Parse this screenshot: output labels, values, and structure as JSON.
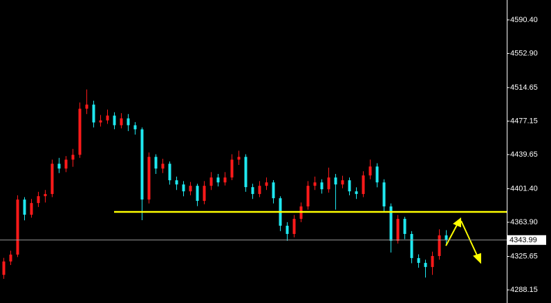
{
  "chart_data": {
    "type": "candlestick",
    "up_color": "#ff1a1a",
    "down_color": "#1fe8f0",
    "ylim": [
      4273.5,
      4612.7
    ],
    "yticks": [
      {
        "value": 4590.4,
        "label": "4590.40"
      },
      {
        "value": 4552.9,
        "label": "4552.90"
      },
      4514.65,
      4477.15,
      4439.65,
      {
        "value": 4401.4,
        "label": "4401.40"
      },
      {
        "value": 4363.9,
        "label": "4363.90"
      },
      4325.65,
      4288.15
    ],
    "current_price": 4343.99,
    "support_level": 4375.5,
    "open": [
      4305.0,
      4320.0,
      4327.7,
      4389.3,
      4372.3,
      4385.4,
      4393.1,
      4395.5,
      4429.4,
      4424.0,
      4434.0,
      4439.4,
      4491.0,
      4495.6,
      4475.6,
      4477.9,
      4483.3,
      4472.5,
      4480.2,
      4472.5,
      4467.9,
      4389.3,
      4437.1,
      4424.0,
      4429.4,
      4410.9,
      4406.2,
      4398.5,
      4404.7,
      4387.8,
      4404.7,
      4414.0,
      4408.5,
      4414.0,
      4434.0,
      4437.1,
      4403.2,
      4395.5,
      4404.7,
      4408.5,
      4390.8,
      4360.0,
      4350.8,
      4367.7,
      4381.6,
      4404.7,
      4408.5,
      4400.8,
      4414.0,
      4406.2,
      4410.9,
      4398.5,
      4395.5,
      4416.3,
      4426.3,
      4408.5,
      4381.6,
      4343.1,
      4367.7,
      4350.8,
      4323.8,
      4318.4,
      4313.8,
      4326.1,
      4349.2
    ],
    "high": [
      4324.0,
      4332.0,
      4394.0,
      4392.0,
      4390.0,
      4398.0,
      4400.0,
      4434.0,
      4436.0,
      4438.0,
      4446.0,
      4498.0,
      4512.5,
      4500.0,
      4484.0,
      4490.0,
      4487.0,
      4486.0,
      4485.0,
      4476.0,
      4470.0,
      4442.0,
      4440.0,
      4435.0,
      4432.0,
      4415.0,
      4410.0,
      4409.0,
      4407.0,
      4410.0,
      4420.0,
      4418.0,
      4420.0,
      4440.0,
      4444.0,
      4440.0,
      4407.0,
      4410.0,
      4414.0,
      4411.0,
      4393.0,
      4364.0,
      4372.0,
      4386.0,
      4410.0,
      4415.0,
      4412.0,
      4425.0,
      4418.0,
      4416.0,
      4414.0,
      4403.0,
      4421.0,
      4434.0,
      4430.0,
      4412.0,
      4385.0,
      4372.0,
      4370.0,
      4354.0,
      4328.0,
      4322.0,
      4331.0,
      4356.0,
      4355.0
    ],
    "low": [
      4300.5,
      4316.0,
      4325.0,
      4366.0,
      4369.0,
      4381.0,
      4386.0,
      4392.0,
      4419.0,
      4420.0,
      4426.0,
      4436.0,
      4485.0,
      4470.0,
      4471.0,
      4474.0,
      4468.0,
      4469.0,
      4466.0,
      4462.0,
      4366.2,
      4385.0,
      4418.0,
      4419.0,
      4406.0,
      4400.0,
      4393.0,
      4394.0,
      4382.0,
      4384.0,
      4400.0,
      4404.0,
      4405.0,
      4411.0,
      4428.0,
      4398.0,
      4390.0,
      4392.0,
      4400.0,
      4385.0,
      4354.0,
      4343.0,
      4347.0,
      4364.0,
      4378.0,
      4400.0,
      4396.0,
      4397.0,
      4378.0,
      4402.0,
      4394.0,
      4390.0,
      4392.0,
      4412.0,
      4403.0,
      4375.0,
      4330.0,
      4340.0,
      4345.0,
      4318.0,
      4313.0,
      4302.0,
      4305.0,
      4322.0,
      4340.0
    ],
    "close": [
      4320.0,
      4327.7,
      4389.3,
      4372.3,
      4385.4,
      4393.1,
      4395.5,
      4429.4,
      4424.0,
      4434.0,
      4439.4,
      4491.0,
      4495.6,
      4475.6,
      4477.9,
      4483.3,
      4472.5,
      4480.2,
      4472.5,
      4467.9,
      4389.3,
      4437.1,
      4424.0,
      4429.4,
      4410.9,
      4406.2,
      4398.5,
      4404.7,
      4387.8,
      4404.7,
      4414.0,
      4408.5,
      4414.0,
      4434.0,
      4437.1,
      4403.2,
      4395.5,
      4404.7,
      4408.5,
      4390.8,
      4360.0,
      4350.8,
      4367.7,
      4381.6,
      4404.7,
      4408.5,
      4400.8,
      4414.0,
      4406.2,
      4410.9,
      4398.5,
      4395.5,
      4416.3,
      4426.3,
      4408.5,
      4381.6,
      4343.1,
      4367.7,
      4350.8,
      4323.8,
      4318.4,
      4313.8,
      4326.1,
      4349.2,
      4343.99
    ]
  }
}
